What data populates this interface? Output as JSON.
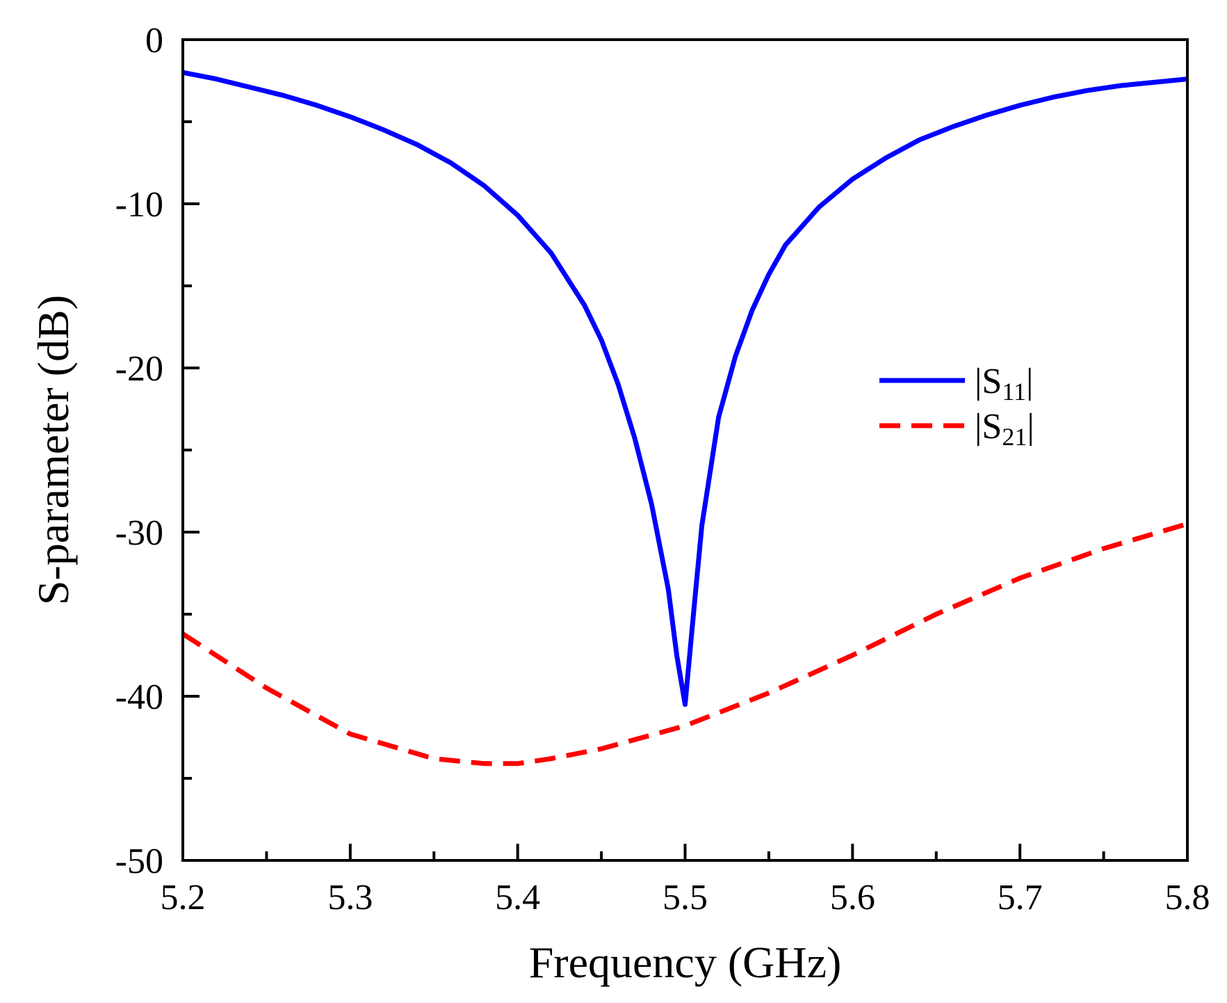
{
  "chart_data": {
    "type": "line",
    "title": "",
    "xlabel": "Frequency (GHz)",
    "ylabel": "S-parameter (dB)",
    "xlim": [
      5.2,
      5.8
    ],
    "ylim": [
      -50,
      0
    ],
    "grid": false,
    "legend_position": "right-middle",
    "x_ticks": [
      5.2,
      5.3,
      5.4,
      5.5,
      5.6,
      5.7,
      5.8
    ],
    "x_tick_labels": [
      "5.2",
      "5.3",
      "5.4",
      "5.5",
      "5.6",
      "5.7",
      "5.8"
    ],
    "x_minor_step": 0.05,
    "y_ticks": [
      0,
      -10,
      -20,
      -30,
      -40,
      -50
    ],
    "y_tick_labels": [
      "0",
      "-10",
      "-20",
      "-30",
      "-40",
      "-50"
    ],
    "y_minor_step": 5,
    "series": [
      {
        "name": "|S11|",
        "legend_main": "S",
        "legend_sub": "11",
        "color": "#0000FF",
        "style": "solid",
        "x": [
          5.2,
          5.22,
          5.24,
          5.26,
          5.28,
          5.3,
          5.32,
          5.34,
          5.36,
          5.38,
          5.4,
          5.42,
          5.44,
          5.45,
          5.46,
          5.47,
          5.48,
          5.49,
          5.495,
          5.5,
          5.505,
          5.51,
          5.52,
          5.53,
          5.54,
          5.55,
          5.56,
          5.58,
          5.6,
          5.62,
          5.64,
          5.66,
          5.68,
          5.7,
          5.72,
          5.74,
          5.76,
          5.78,
          5.8
        ],
        "y": [
          -2.0,
          -2.4,
          -2.9,
          -3.4,
          -4.0,
          -4.7,
          -5.5,
          -6.4,
          -7.5,
          -8.9,
          -10.7,
          -13.0,
          -16.2,
          -18.3,
          -21.0,
          -24.3,
          -28.3,
          -33.5,
          -37.5,
          -40.5,
          -35.0,
          -29.6,
          -23.0,
          -19.3,
          -16.5,
          -14.3,
          -12.5,
          -10.2,
          -8.5,
          -7.2,
          -6.1,
          -5.3,
          -4.6,
          -4.0,
          -3.5,
          -3.1,
          -2.8,
          -2.6,
          -2.4
        ]
      },
      {
        "name": "|S21|",
        "legend_main": "S",
        "legend_sub": "21",
        "color": "#FF0000",
        "style": "dashed",
        "x": [
          5.2,
          5.25,
          5.3,
          5.35,
          5.38,
          5.4,
          5.42,
          5.45,
          5.5,
          5.55,
          5.6,
          5.65,
          5.7,
          5.75,
          5.8
        ],
        "y": [
          -36.2,
          -39.5,
          -42.3,
          -43.8,
          -44.1,
          -44.1,
          -43.8,
          -43.2,
          -41.8,
          -39.8,
          -37.5,
          -35.0,
          -32.8,
          -31.0,
          -29.5
        ]
      }
    ]
  }
}
